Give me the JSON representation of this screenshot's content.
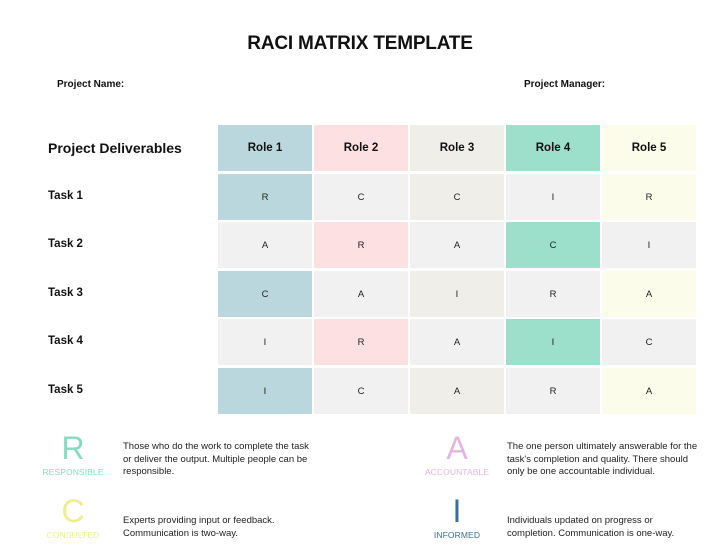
{
  "title": "RACI MATRIX TEMPLATE",
  "meta": {
    "project_name_label": "Project Name:",
    "project_manager_label": "Project Manager:"
  },
  "matrix": {
    "corner_label": "Project Deliverables",
    "roles": [
      {
        "label": "Role 1",
        "color": "#bbd7de"
      },
      {
        "label": "Role 2",
        "color": "#fde0e1"
      },
      {
        "label": "Role 3",
        "color": "#efeee8"
      },
      {
        "label": "Role 4",
        "color": "#9cdfcb"
      },
      {
        "label": "Role 5",
        "color": "#fbfcea"
      }
    ],
    "neutral_color": "#f1f1f1",
    "tasks": [
      {
        "label": "Task 1",
        "values": [
          "R",
          "C",
          "C",
          "I",
          "R"
        ]
      },
      {
        "label": "Task 2",
        "values": [
          "A",
          "R",
          "A",
          "C",
          "I"
        ]
      },
      {
        "label": "Task 3",
        "values": [
          "C",
          "A",
          "I",
          "R",
          "A"
        ]
      },
      {
        "label": "Task 4",
        "values": [
          "I",
          "R",
          "A",
          "I",
          "C"
        ]
      },
      {
        "label": "Task 5",
        "values": [
          "I",
          "C",
          "A",
          "R",
          "A"
        ]
      }
    ]
  },
  "legend": {
    "responsible": {
      "letter": "R",
      "word": "RESPONSIBLE",
      "color": "#86dcc0",
      "desc": "Those who do the work to complete the task or deliver the output. Multiple people can be responsible."
    },
    "accountable": {
      "letter": "A",
      "word": "ACCOUNTABLE",
      "color": "#e3b6dd",
      "desc": "The one person ultimately answerable for the task's completion and quality. There should only be one accountable individual."
    },
    "consulted": {
      "letter": "C",
      "word": "CONSULTED",
      "color": "#ecee8f",
      "desc": "Experts providing input or feedback. Communication is two-way."
    },
    "informed": {
      "letter": "I",
      "word": "INFORMED",
      "color": "#3a6f9b",
      "desc": "Individuals updated on progress or completion. Communication is one-way."
    }
  }
}
